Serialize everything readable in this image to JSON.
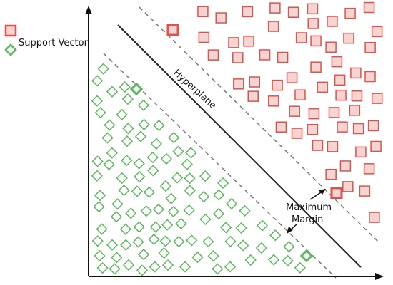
{
  "legend": {
    "top_label": "",
    "support_vector_label": "Support Vector"
  },
  "annotations": {
    "hyperplane": "Hyperplane",
    "margin_line1": "Maximum",
    "margin_line2": "Margin"
  },
  "colors": {
    "positive_class": "#d9534f",
    "positive_fill": "#f6d4d2",
    "negative_class": "#5cb85c",
    "negative_fill": "#ffffff",
    "axis": "#111111",
    "hyperplane": "#222222",
    "margin": "#777777"
  },
  "icons": {
    "positive_marker": "square-marker-icon",
    "negative_marker": "diamond-marker-icon"
  }
}
